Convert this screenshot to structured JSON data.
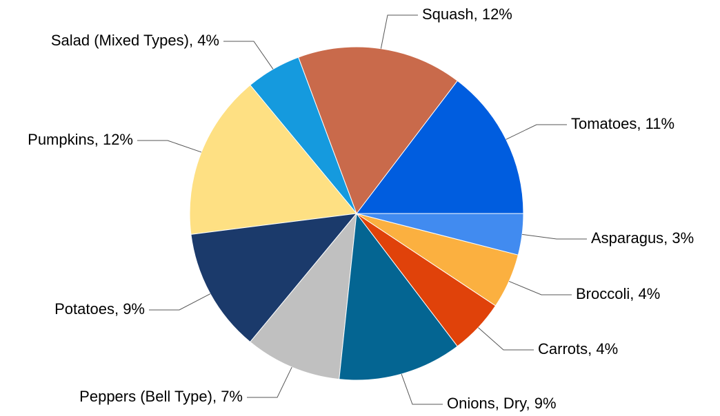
{
  "chart_data": {
    "type": "pie",
    "values": [
      11,
      12,
      4,
      12,
      9,
      7,
      9,
      4,
      4,
      3
    ],
    "value_labels": [
      "Tomatoes, 11%",
      "Squash, 12%",
      "Salad (Mixed Types), 4%",
      "Pumpkins, 12%",
      "Potatoes, 9%",
      "Peppers (Bell Type), 7%",
      "Onions, Dry, 9%",
      "Carrots, 4%",
      "Broccoli, 4%",
      "Asparagus, 3%"
    ],
    "colors": [
      "#005ddf",
      "#c96a4b",
      "#159ade",
      "#fee083",
      "#1b3a6b",
      "#c0c0c0",
      "#046592",
      "#e0420a",
      "#fbb040",
      "#418bf0"
    ]
  }
}
